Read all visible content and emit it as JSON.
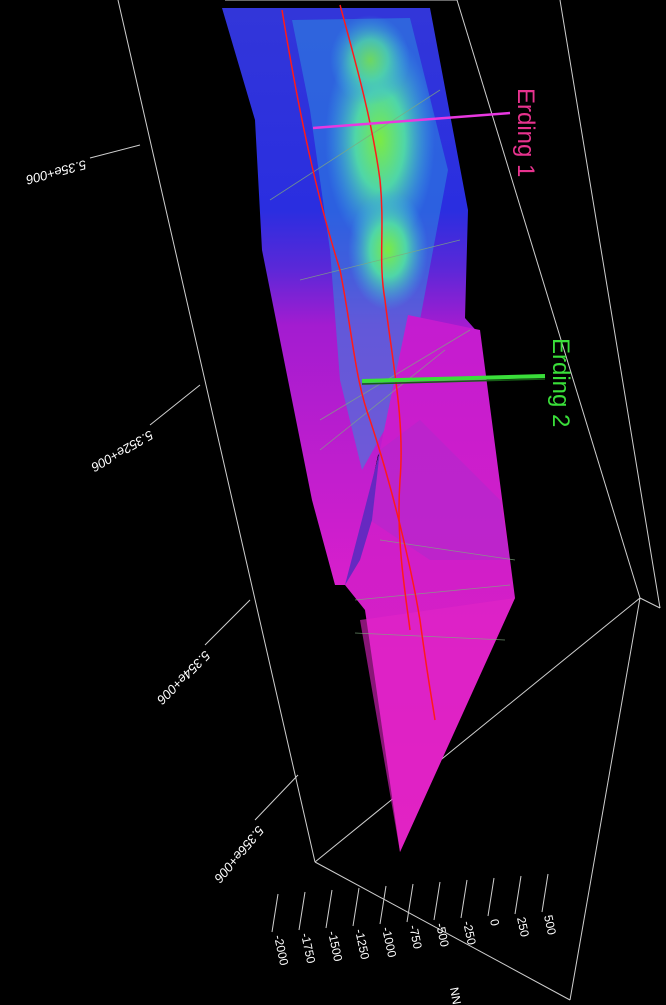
{
  "chart_data": {
    "type": "surface3d",
    "wells": [
      {
        "name": "Erding 1",
        "color": "#e8338f"
      },
      {
        "name": "Erding 2",
        "color": "#3adf3a"
      }
    ],
    "y_axis_ticks": [
      "5.35e+006",
      "5.352e+006",
      "5.354e+006",
      "5.356e+006"
    ],
    "z_axis_ticks": [
      "500",
      "250",
      "0",
      "-250",
      "-500",
      "-750",
      "-1000",
      "-1250",
      "-1500",
      "-1750",
      "-2000"
    ],
    "z_axis_label": "NN m",
    "colors": {
      "surface_top": "#2a33d8",
      "surface_mid": "#4ed0c4",
      "surface_high": "#6be85a",
      "surface_bottom": "#d81fc8",
      "fault_trace": "#ff1a1a",
      "box_lines": "#cfcfcf"
    }
  }
}
